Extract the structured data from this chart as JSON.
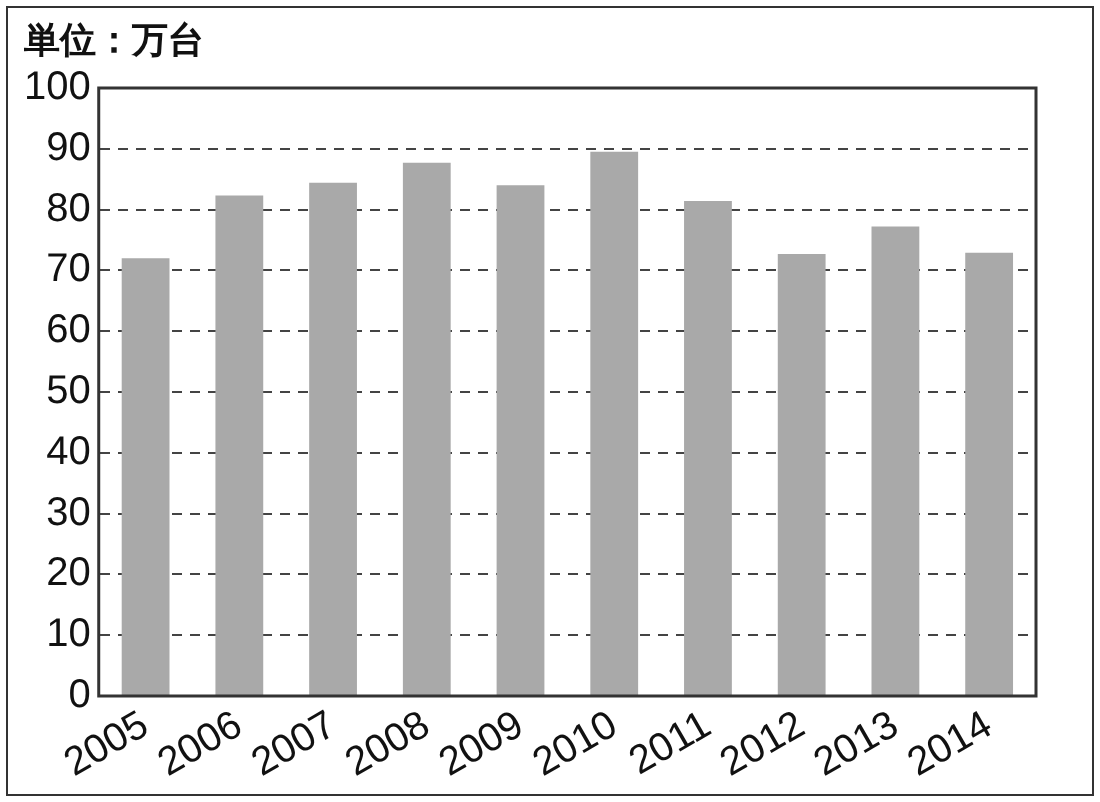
{
  "chart_data": {
    "type": "bar",
    "ylabel": "単位：万台",
    "categories": [
      "2005",
      "2006",
      "2007",
      "2008",
      "2009",
      "2010",
      "2011",
      "2012",
      "2013",
      "2014"
    ],
    "values": [
      72.0,
      82.3,
      84.4,
      87.7,
      84.0,
      89.5,
      81.4,
      72.7,
      77.2,
      72.9
    ],
    "color": "#a9a9a9",
    "ylim": [
      0,
      100
    ],
    "yticks": [
      0,
      10,
      20,
      30,
      40,
      50,
      60,
      70,
      80,
      90,
      100
    ],
    "grid": "y",
    "legend": false
  }
}
